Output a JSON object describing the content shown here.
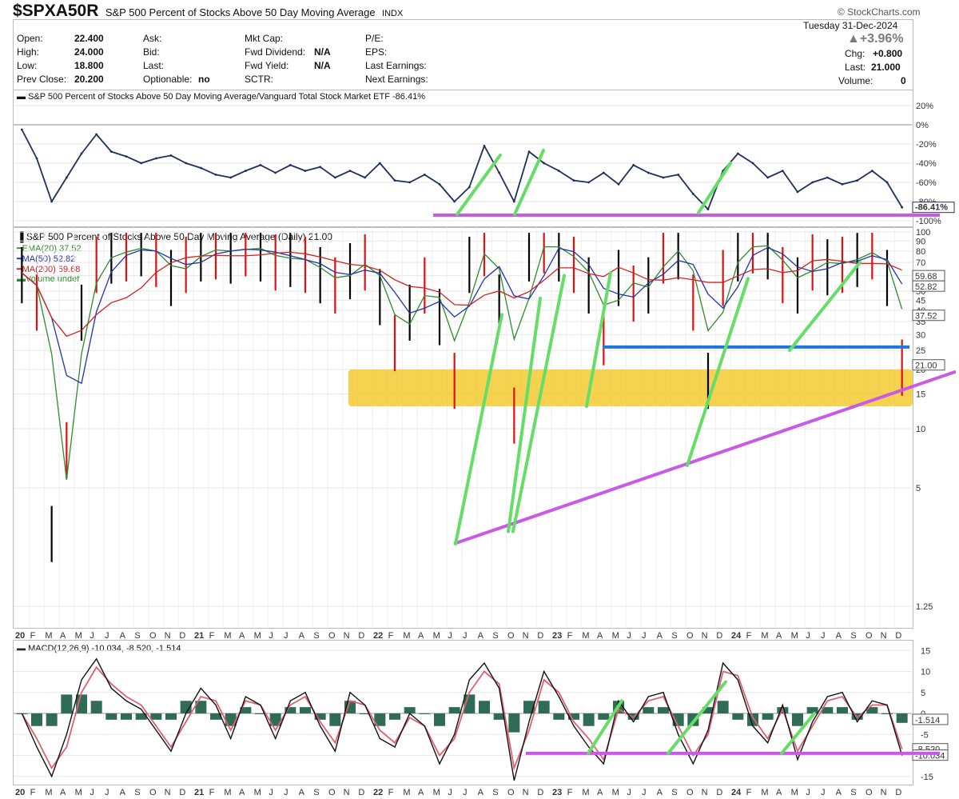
{
  "header": {
    "symbol": "$SPXA50R",
    "name": "S&P 500 Percent of Stocks Above 50 Day Moving Average",
    "exchange": "INDX",
    "brand": "© StockCharts.com",
    "date": "Tuesday  31-Dec-2024",
    "pct_change": "▲+3.96%"
  },
  "quote": {
    "open_label": "Open:",
    "open": "22.400",
    "high_label": "High:",
    "high": "24.000",
    "low_label": "Low:",
    "low": "18.800",
    "prev_label": "Prev Close:",
    "prev": "20.200",
    "ask_label": "Ask:",
    "bid_label": "Bid:",
    "last_label": "Last:",
    "optionable_label": "Optionable:",
    "optionable": "no",
    "mktcap_label": "Mkt Cap:",
    "fwddiv_label": "Fwd Dividend:",
    "fwddiv": "N/A",
    "fwdyield_label": "Fwd Yield:",
    "fwdyield": "N/A",
    "sctr_label": "SCTR:",
    "pe_label": "P/E:",
    "eps_label": "EPS:",
    "lastearn_label": "Last Earnings:",
    "nextearn_label": "Next Earnings:",
    "chg_label": "Chg:",
    "chg": "+0.800",
    "last2_label": "Last:",
    "last2": "21.000",
    "vol_label": "Volume:",
    "vol": "0"
  },
  "colors": {
    "line_dark": "#1f2f5c",
    "price_black": "#000000",
    "price_red": "#e01010",
    "ema_green": "#2e8b2e",
    "ma50_blue": "#2233aa",
    "ma200_red": "#d42020",
    "macd_signal": "#e06070",
    "histogram": "#2f6b55",
    "annot_green": "#66dd66",
    "annot_purple": "#c85ae6",
    "annot_blue": "#1a78e0",
    "annot_yellow": "#f3c824"
  },
  "chart_data": [
    {
      "type": "line",
      "title": "S&P 500 Percent of Stocks Above 50 Day Moving Average/Vanguard Total Stock Market ETF -86.41%",
      "x": [
        "20",
        "F",
        "M",
        "A",
        "M",
        "J",
        "J",
        "A",
        "S",
        "O",
        "N",
        "D",
        "21",
        "F",
        "M",
        "A",
        "M",
        "J",
        "J",
        "A",
        "S",
        "O",
        "N",
        "D",
        "22",
        "F",
        "M",
        "A",
        "M",
        "J",
        "J",
        "A",
        "S",
        "O",
        "N",
        "D",
        "23",
        "F",
        "M",
        "A",
        "M",
        "J",
        "J",
        "A",
        "S",
        "O",
        "N",
        "D",
        "24",
        "F",
        "M",
        "A",
        "M",
        "J",
        "J",
        "A",
        "S",
        "O",
        "N",
        "D"
      ],
      "series": [
        {
          "values": [
            -5,
            -35,
            -80,
            -55,
            -30,
            -10,
            -28,
            -33,
            -40,
            -35,
            -32,
            -40,
            -45,
            -52,
            -55,
            -48,
            -42,
            -50,
            -42,
            -48,
            -44,
            -55,
            -48,
            -55,
            -40,
            -58,
            -60,
            -52,
            -62,
            -80,
            -65,
            -22,
            -50,
            -80,
            -28,
            -40,
            -48,
            -58,
            -60,
            -50,
            -62,
            -42,
            -50,
            -55,
            -52,
            -72,
            -88,
            -48,
            -30,
            -40,
            -55,
            -48,
            -70,
            -60,
            -55,
            -62,
            -58,
            -48,
            -60,
            -86
          ]
        }
      ],
      "yticks": [
        "20%",
        "0%",
        "-20%",
        "-40%",
        "-60%",
        "-80%",
        "-100%"
      ],
      "ylim": [
        -100,
        25
      ],
      "last_value_label": "-86.41%"
    },
    {
      "type": "line",
      "title": "S&P 500 Percent of Stocks Above 50 Day Moving Average (Daily) 21.00",
      "log_scale": true,
      "legend": [
        {
          "name": "EMA(20) 37.52"
        },
        {
          "name": "MA(50) 52.82"
        },
        {
          "name": "MA(200) 59.68"
        },
        {
          "name": "Volume undef"
        }
      ],
      "x": [
        "20",
        "F",
        "M",
        "A",
        "M",
        "J",
        "J",
        "A",
        "S",
        "O",
        "N",
        "D",
        "21",
        "F",
        "M",
        "A",
        "M",
        "J",
        "J",
        "A",
        "S",
        "O",
        "N",
        "D",
        "22",
        "F",
        "M",
        "A",
        "M",
        "J",
        "J",
        "A",
        "S",
        "O",
        "N",
        "D",
        "23",
        "F",
        "M",
        "A",
        "M",
        "J",
        "J",
        "A",
        "S",
        "O",
        "N",
        "D",
        "24",
        "F",
        "M",
        "A",
        "M",
        "J",
        "J",
        "A",
        "S",
        "O",
        "N",
        "D"
      ],
      "series": [
        {
          "name": "price",
          "values": [
            62,
            45,
            3,
            8,
            40,
            70,
            78,
            80,
            85,
            75,
            60,
            70,
            80,
            82,
            78,
            85,
            80,
            72,
            75,
            70,
            62,
            55,
            65,
            72,
            48,
            28,
            40,
            55,
            38,
            18,
            70,
            85,
            45,
            12,
            80,
            88,
            80,
            70,
            55,
            30,
            60,
            50,
            55,
            78,
            82,
            45,
            18,
            60,
            80,
            88,
            82,
            62,
            55,
            72,
            68,
            70,
            75,
            82,
            60,
            21
          ]
        }
      ],
      "yticks": [
        "100",
        "90",
        "80",
        "70",
        "60",
        "50",
        "45",
        "40",
        "35",
        "30",
        "25",
        "20",
        "15",
        "10",
        "5",
        "1.25"
      ],
      "ylim": [
        1,
        100
      ],
      "tags": [
        "59.68",
        "52.82",
        "37.52",
        "21.00"
      ]
    },
    {
      "type": "line",
      "title": "MACD(12,26,9) -10.034, -8.520, -1.514",
      "x": [
        "20",
        "F",
        "M",
        "A",
        "M",
        "J",
        "J",
        "A",
        "S",
        "O",
        "N",
        "D",
        "21",
        "F",
        "M",
        "A",
        "M",
        "J",
        "J",
        "A",
        "S",
        "O",
        "N",
        "D",
        "22",
        "F",
        "M",
        "A",
        "M",
        "J",
        "J",
        "A",
        "S",
        "O",
        "N",
        "D",
        "23",
        "F",
        "M",
        "A",
        "M",
        "J",
        "J",
        "A",
        "S",
        "O",
        "N",
        "D",
        "24",
        "F",
        "M",
        "A",
        "M",
        "J",
        "J",
        "A",
        "S",
        "O",
        "N",
        "D"
      ],
      "series": [
        {
          "name": "MACD",
          "values": [
            0,
            -8,
            -15,
            -5,
            8,
            13,
            6,
            3,
            1,
            -4,
            -9,
            0,
            6,
            2,
            -6,
            4,
            2,
            -6,
            3,
            5,
            -3,
            -9,
            5,
            2,
            -6,
            -8,
            0,
            -3,
            -12,
            -5,
            8,
            12,
            6,
            -16,
            -2,
            10,
            4,
            -3,
            -8,
            -12,
            3,
            -2,
            4,
            5,
            -5,
            -12,
            -4,
            12,
            8,
            -3,
            -7,
            2,
            -11,
            -2,
            4,
            5,
            -2,
            3,
            2,
            -10
          ]
        },
        {
          "name": "Signal",
          "values": [
            0,
            -6,
            -13,
            -8,
            5,
            11,
            7,
            4,
            2,
            -3,
            -8,
            -2,
            4,
            3,
            -4,
            3,
            2,
            -4,
            2,
            4,
            -2,
            -7,
            3,
            2,
            -4,
            -7,
            -1,
            -3,
            -10,
            -6,
            5,
            10,
            7,
            -13,
            -4,
            8,
            5,
            -2,
            -6,
            -11,
            1,
            -1,
            3,
            4,
            -3,
            -10,
            -5,
            10,
            9,
            -1,
            -6,
            1,
            -9,
            -3,
            3,
            4,
            -1,
            2,
            2,
            -8.5
          ]
        }
      ],
      "yticks": [
        "15",
        "10",
        "5",
        "0",
        "-5",
        "-10",
        "-15"
      ],
      "ylim": [
        -16,
        16
      ],
      "tags": [
        "-1.514",
        "-8.520",
        "-10.034"
      ]
    }
  ],
  "annotations": {
    "yellow_zone": "15–20 support band",
    "blue_line": "25 level",
    "purple_lines": "rising trendline and -100% / -15 baselines",
    "green_arrows": "rebounds"
  }
}
